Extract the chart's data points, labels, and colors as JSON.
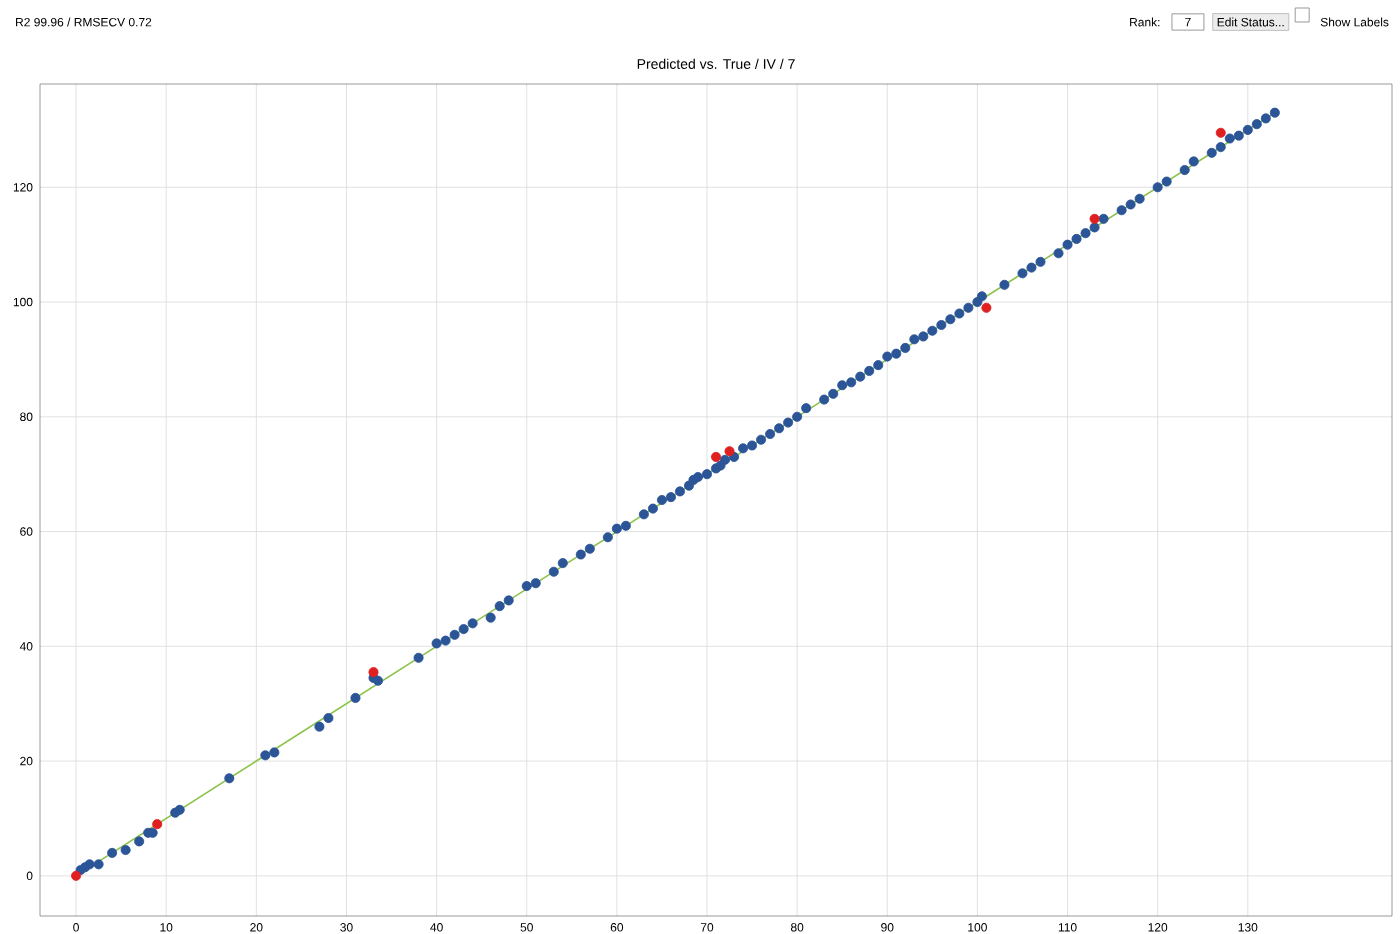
{
  "chart_data": {
    "type": "scatter",
    "title": "Predicted vs. True / IV / 7",
    "annotations": [
      "R2 99.96 / RMSECV 0.72",
      "Rank:",
      "7",
      "Edit Status...",
      "Show Labels"
    ],
    "xlim": [
      -4,
      146
    ],
    "ylim": [
      -7,
      138
    ],
    "xticks": [
      0,
      10,
      20,
      30,
      40,
      50,
      60,
      70,
      80,
      90,
      100,
      110,
      120,
      130
    ],
    "yticks": [
      0,
      20,
      40,
      60,
      80,
      100,
      120
    ],
    "grid": true,
    "marker": "circle",
    "series": [
      {
        "type": "line",
        "color": "#8bc34a",
        "marker": "none",
        "line_style": "solid",
        "x": [
          0,
          133
        ],
        "values": [
          0,
          133
        ]
      },
      {
        "color": "#2b5597",
        "x": [
          0.5,
          1,
          1.5,
          2.5,
          4,
          5.5,
          7,
          8,
          8.5,
          11,
          11.5,
          17,
          21,
          22,
          27,
          28,
          31,
          33,
          33.5,
          38,
          40,
          41,
          42,
          43,
          44,
          46,
          47,
          48,
          50,
          51,
          53,
          54,
          56,
          57,
          59,
          60,
          61,
          63,
          64,
          65,
          66,
          67,
          68,
          68.5,
          69,
          70,
          71,
          71.5,
          72,
          73,
          74,
          75,
          76,
          77,
          78,
          79,
          80,
          81,
          83,
          84,
          85,
          86,
          87,
          88,
          89,
          90,
          91,
          92,
          93,
          94,
          95,
          96,
          97,
          98,
          99,
          100,
          100.5,
          103,
          105,
          106,
          107,
          109,
          110,
          111,
          112,
          113,
          114,
          116,
          117,
          118,
          120,
          121,
          123,
          124,
          126,
          127,
          128,
          129,
          130,
          131,
          132,
          133
        ],
        "values": [
          1,
          1.5,
          2,
          2,
          4,
          4.5,
          6,
          7.5,
          7.5,
          11,
          11.5,
          17,
          21,
          21.5,
          26,
          27.5,
          31,
          34.5,
          34,
          38,
          40.5,
          41,
          42,
          43,
          44,
          45,
          47,
          48,
          50.5,
          51,
          53,
          54.5,
          56,
          57,
          59,
          60.5,
          61,
          63,
          64,
          65.5,
          66,
          67,
          68,
          69,
          69.5,
          70,
          71,
          71.5,
          72.5,
          73,
          74.5,
          75,
          76,
          77,
          78,
          79,
          80,
          81.5,
          83,
          84,
          85.5,
          86,
          87,
          88,
          89,
          90.5,
          91,
          92,
          93.5,
          94,
          95,
          96,
          97,
          98,
          99,
          100,
          101,
          103,
          105,
          106,
          107,
          108.5,
          110,
          111,
          112,
          113,
          114.5,
          116,
          117,
          118,
          120,
          121,
          123,
          124.5,
          126,
          127,
          128.5,
          129,
          130,
          131,
          132,
          133
        ]
      },
      {
        "color": "#e02020",
        "x": [
          0,
          9,
          33,
          71,
          72.5,
          101,
          113,
          127
        ],
        "values": [
          0,
          9,
          35.5,
          73,
          74,
          99,
          114.5,
          129.5
        ]
      }
    ]
  }
}
